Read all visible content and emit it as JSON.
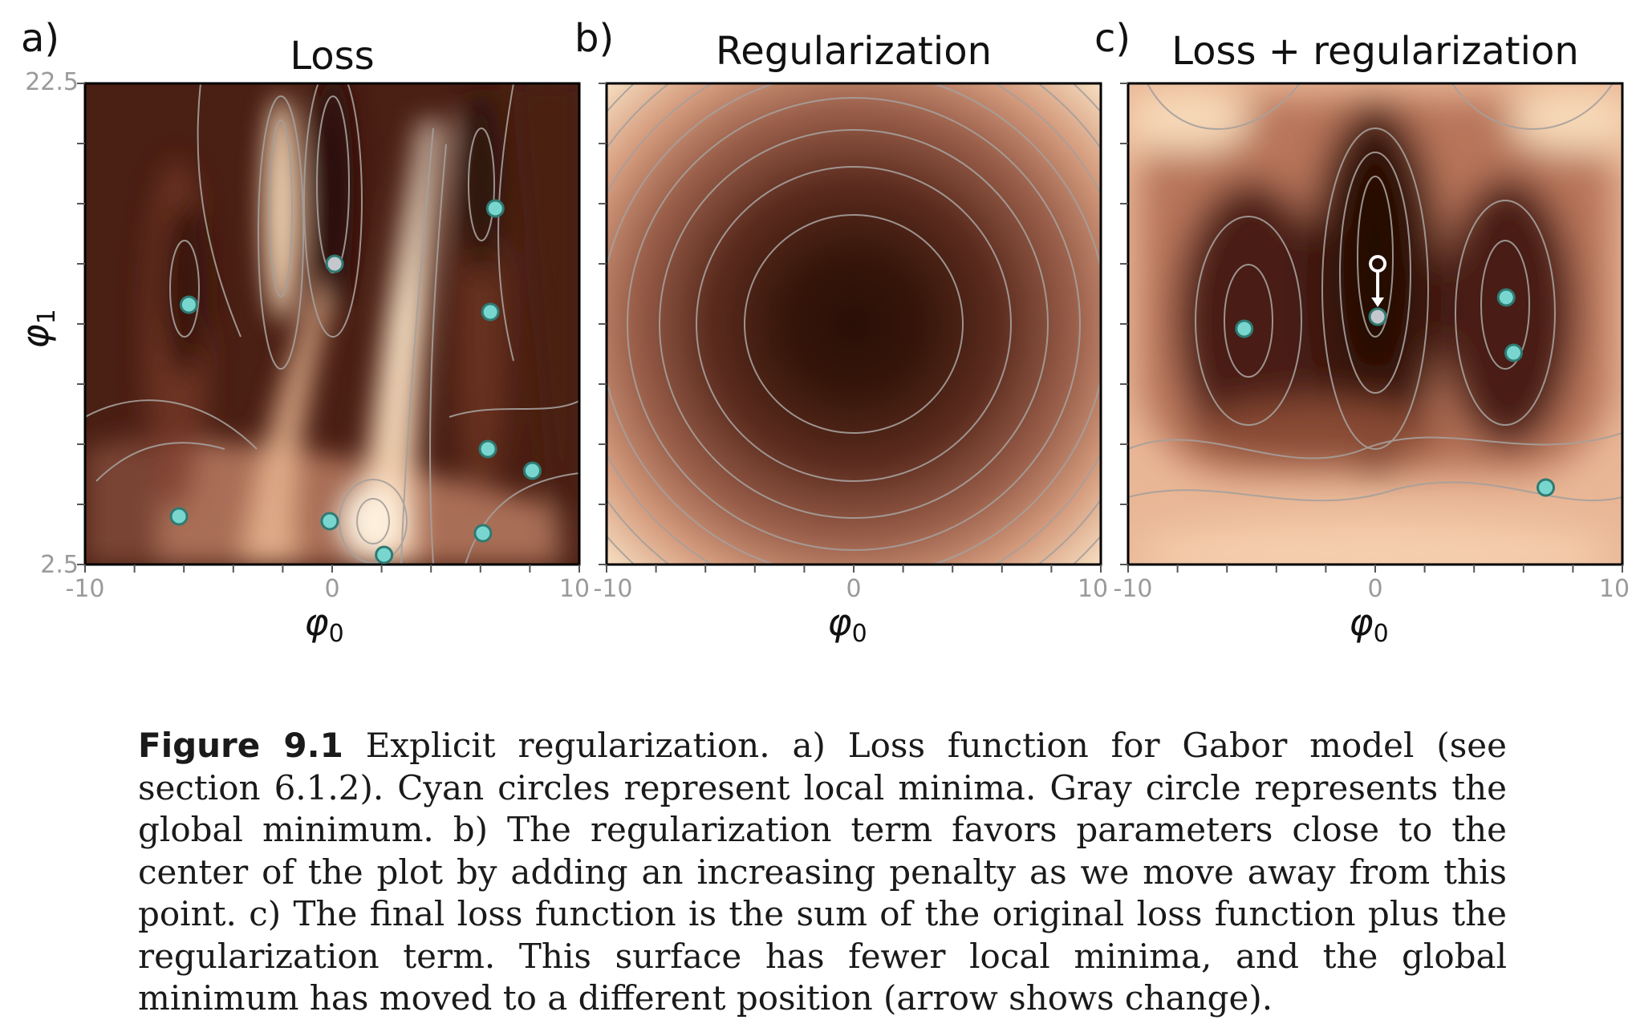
{
  "figure": {
    "colors": {
      "dark": "#2a0f08",
      "light": "#fdf1de",
      "contour": "#a6a09c",
      "cyan": "#78d6cf",
      "gray_marker": "#c4c8cc",
      "frame": "#000000"
    },
    "panels": [
      {
        "letter": "a)",
        "title": "Loss",
        "xlabel": "φ",
        "xlabel_sub": "0",
        "ylabel": "φ",
        "ylabel_sub": "1",
        "x_ticks": [
          "-10",
          "0",
          "10"
        ],
        "y_ticks": [
          "22.5",
          "2.5"
        ],
        "minima_cyan": [
          [
            -5.8,
            13.3
          ],
          [
            -6.2,
            4.5
          ],
          [
            -0.1,
            4.3
          ],
          [
            2.1,
            2.9
          ],
          [
            6.1,
            3.8
          ],
          [
            6.3,
            7.3
          ],
          [
            8.1,
            6.4
          ],
          [
            6.4,
            13.0
          ],
          [
            6.6,
            17.3
          ]
        ],
        "minimum_global": [
          0.1,
          15.0
        ]
      },
      {
        "letter": "b)",
        "title": "Regularization",
        "xlabel": "φ",
        "xlabel_sub": "0",
        "x_ticks": [
          "-10",
          "0",
          "10"
        ]
      },
      {
        "letter": "c)",
        "title": "Loss + regularization",
        "xlabel": "φ",
        "xlabel_sub": "0",
        "x_ticks": [
          "-10",
          "0",
          "10"
        ],
        "minima_cyan": [
          [
            -5.3,
            12.3
          ],
          [
            5.3,
            13.6
          ],
          [
            5.6,
            11.3
          ],
          [
            6.9,
            5.7
          ]
        ],
        "minimum_global": [
          0.1,
          12.8
        ],
        "minimum_previous": [
          0.1,
          15.0
        ]
      }
    ]
  },
  "caption": {
    "label": "Figure 9.1",
    "text": "Explicit regularization. a) Loss function for Gabor model (see section 6.1.2). Cyan circles represent local minima. Gray circle represents the global minimum. b) The regularization term favors parameters close to the center of the plot by adding an increasing penalty as we move away from this point. c) The final loss function is the sum of the original loss function plus the regularization term. This surface has fewer local minima, and the global minimum has moved to a different position (arrow shows change)."
  }
}
